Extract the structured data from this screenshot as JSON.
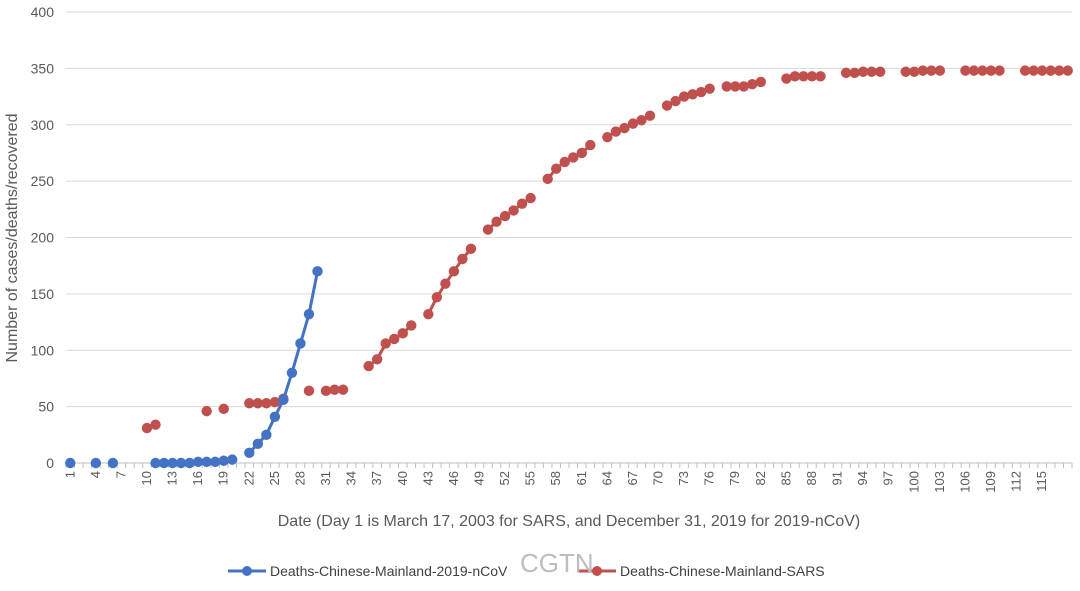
{
  "chart_data": {
    "type": "line",
    "xlabel": "Date (Day 1 is March 17, 2003 for SARS, and December 31, 2019 for 2019-nCoV)",
    "ylabel": "Number of cases/deaths/recovered",
    "ylim": [
      0,
      400
    ],
    "yticks": [
      0,
      50,
      100,
      150,
      200,
      250,
      300,
      350,
      400
    ],
    "xlim": [
      1,
      118
    ],
    "xtick_labels": [
      "1",
      "4",
      "7",
      "10",
      "13",
      "16",
      "19",
      "22",
      "25",
      "28",
      "31",
      "34",
      "37",
      "40",
      "43",
      "46",
      "49",
      "52",
      "55",
      "58",
      "61",
      "64",
      "67",
      "70",
      "73",
      "76",
      "79",
      "82",
      "85",
      "88",
      "91",
      "94",
      "97",
      "100",
      "103",
      "106",
      "109",
      "112",
      "115"
    ],
    "grid": "horizontal",
    "legend_position": "bottom",
    "watermark": "CGTN",
    "series": [
      {
        "name": "Deaths-Chinese-Mainland-2019-nCoV",
        "color": "#4472C4",
        "x": [
          1,
          4,
          6,
          11,
          12,
          13,
          14,
          15,
          16,
          17,
          18,
          19,
          20,
          22,
          23,
          24,
          25,
          26,
          27,
          28,
          29,
          30
        ],
        "y": [
          0,
          0,
          0,
          0,
          0,
          0,
          0,
          0,
          1,
          1,
          1,
          2,
          3,
          9,
          17,
          25,
          41,
          56,
          80,
          106,
          132,
          170
        ]
      },
      {
        "name": "Deaths-Chinese-Mainland-SARS",
        "color": "#C0504D",
        "x": [
          10,
          11,
          17,
          19,
          22,
          23,
          24,
          25,
          26,
          29,
          31,
          32,
          33,
          36,
          37,
          38,
          39,
          40,
          41,
          43,
          44,
          45,
          46,
          47,
          48,
          50,
          51,
          52,
          53,
          54,
          55,
          57,
          58,
          59,
          60,
          61,
          62,
          64,
          65,
          66,
          67,
          68,
          69,
          71,
          72,
          73,
          74,
          75,
          76,
          78,
          79,
          80,
          81,
          82,
          85,
          86,
          87,
          88,
          89,
          92,
          93,
          94,
          95,
          96,
          99,
          100,
          101,
          102,
          103,
          106,
          107,
          108,
          109,
          110,
          113,
          114,
          115,
          116,
          117,
          118
        ],
        "y": [
          31,
          34,
          46,
          48,
          53,
          53,
          53,
          54,
          57,
          64,
          64,
          65,
          65,
          86,
          92,
          106,
          110,
          115,
          122,
          132,
          147,
          159,
          170,
          181,
          190,
          207,
          214,
          219,
          224,
          230,
          235,
          252,
          261,
          267,
          271,
          275,
          282,
          289,
          294,
          297,
          301,
          304,
          308,
          317,
          321,
          325,
          327,
          329,
          332,
          334,
          334,
          334,
          336,
          338,
          341,
          343,
          343,
          343,
          343,
          346,
          346,
          347,
          347,
          347,
          347,
          347,
          348,
          348,
          348,
          348,
          348,
          348,
          348,
          348,
          348,
          348,
          348,
          348,
          348,
          348
        ]
      }
    ]
  }
}
